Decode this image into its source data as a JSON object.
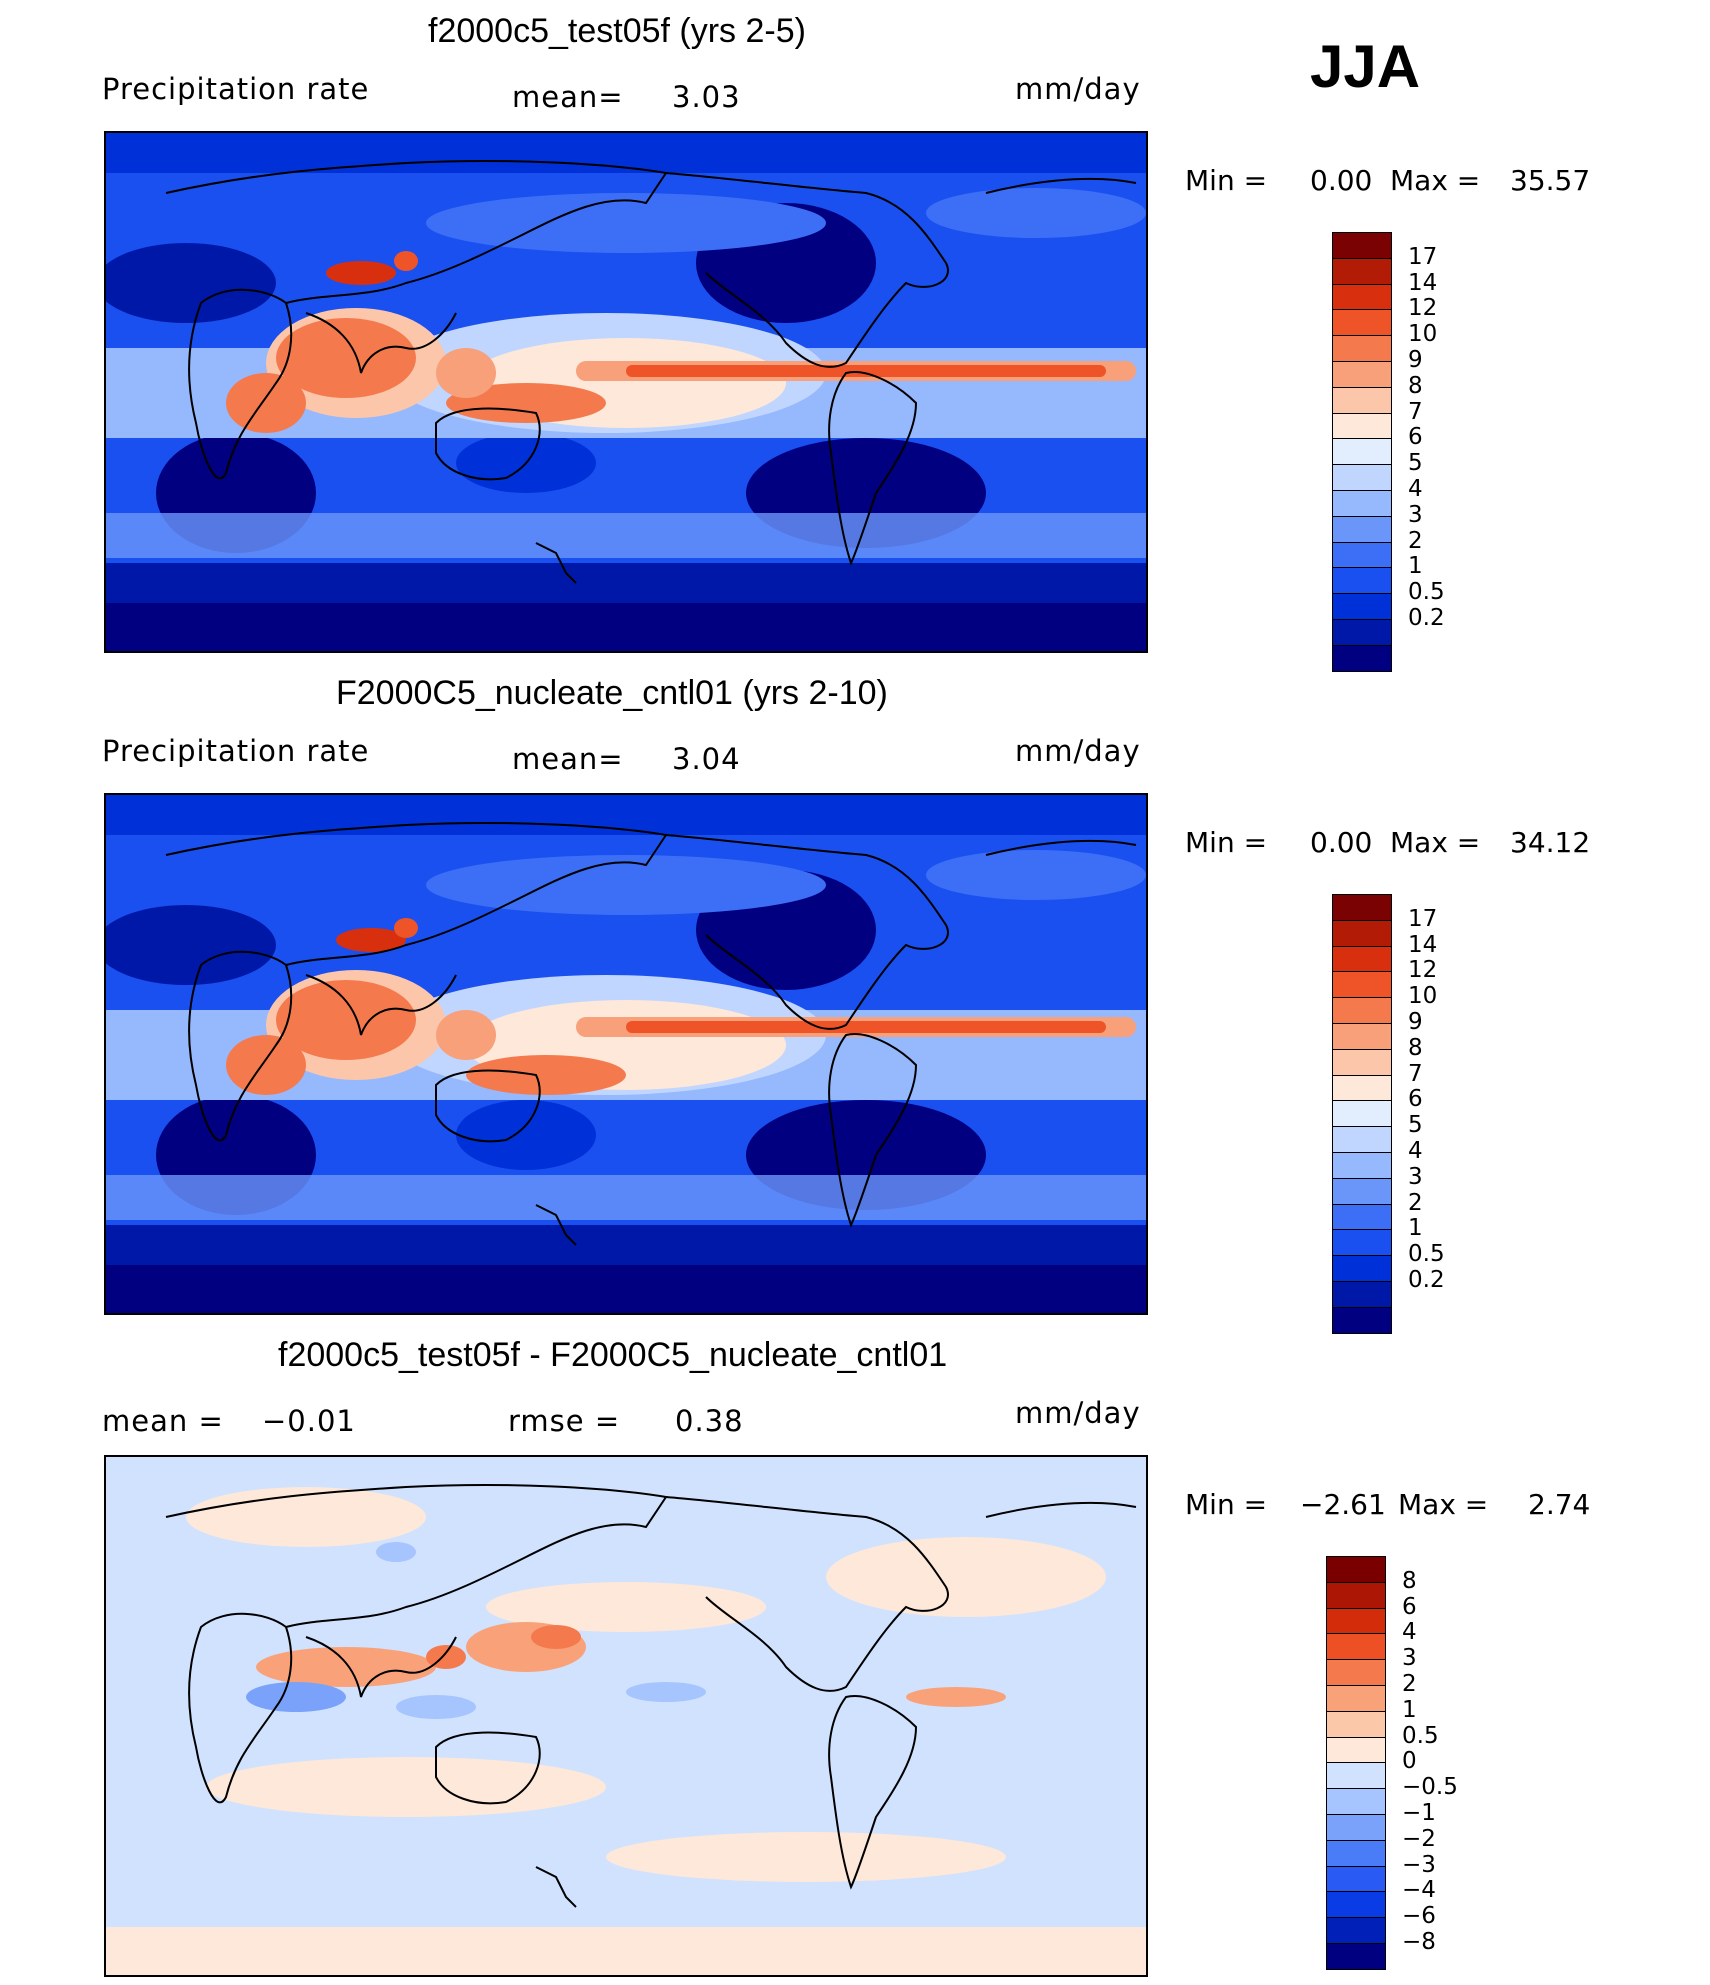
{
  "season": "JJA",
  "panels": [
    {
      "title": "f2000c5_test05f (yrs 2-5)",
      "variable": "Precipitation  rate",
      "stat_label": "mean=",
      "stat_value": "3.03",
      "units": "mm/day",
      "min_label": "Min  =",
      "min_value": "0.00",
      "max_label": "Max  =",
      "max_value": "35.57",
      "colorbar_labels": [
        "17",
        "14",
        "12",
        "10",
        "9",
        "8",
        "7",
        "6",
        "5",
        "4",
        "3",
        "2",
        "1",
        "0.5",
        "0.2"
      ]
    },
    {
      "title": "F2000C5_nucleate_cntl01 (yrs 2-10)",
      "variable": "Precipitation  rate",
      "stat_label": "mean=",
      "stat_value": "3.04",
      "units": "mm/day",
      "min_label": "Min  =",
      "min_value": "0.00",
      "max_label": "Max  =",
      "max_value": "34.12",
      "colorbar_labels": [
        "17",
        "14",
        "12",
        "10",
        "9",
        "8",
        "7",
        "6",
        "5",
        "4",
        "3",
        "2",
        "1",
        "0.5",
        "0.2"
      ]
    },
    {
      "title": "f2000c5_test05f - F2000C5_nucleate_cntl01",
      "stat1_label": "mean  =",
      "stat1_value": "−0.01",
      "stat2_label": "rmse  =",
      "stat2_value": "0.38",
      "units": "mm/day",
      "min_label": "Min  =",
      "min_value": "−2.61",
      "max_label": "Max  =",
      "max_value": "2.74",
      "colorbar_labels": [
        "8",
        "6",
        "4",
        "3",
        "2",
        "1",
        "0.5",
        "0",
        "−0.5",
        "−1",
        "−2",
        "−3",
        "−4",
        "−6",
        "−8"
      ]
    }
  ],
  "colors": {
    "precip_scale": [
      "#000080",
      "#0018a8",
      "#0030d8",
      "#1a50f0",
      "#3c6ef6",
      "#6a96fa",
      "#96b8fd",
      "#c0d6fe",
      "#e2eefe",
      "#fde8da",
      "#fcc6aa",
      "#f8a07a",
      "#f47a4e",
      "#ee5428",
      "#d8300e",
      "#b21c06",
      "#7a0202"
    ],
    "diff_scale": [
      "#000080",
      "#0020b8",
      "#0a3ce6",
      "#2a5af4",
      "#4a7cf8",
      "#7aa2fa",
      "#a6c4fd",
      "#d0e2fe",
      "#fde8da",
      "#fcc8aa",
      "#f9a27a",
      "#f47a4e",
      "#ec5024",
      "#d22c0a",
      "#ac1604",
      "#7a0000"
    ]
  }
}
